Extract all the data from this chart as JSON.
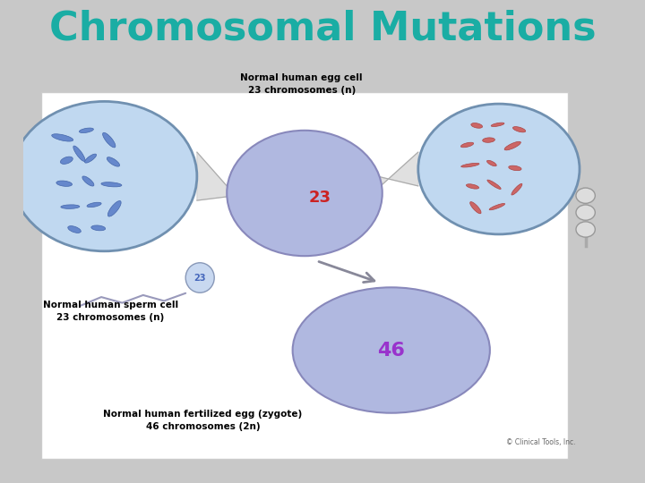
{
  "title": "Chromosomal Mutations",
  "title_color": "#1aada4",
  "title_fontsize": 32,
  "background_color": "#c8c8c8",
  "egg_cell_label": "Normal human egg cell\n23 chromosomes (n)",
  "sperm_label": "Normal human sperm cell\n23 chromosomes (n)",
  "zygote_label": "Normal human fertilized egg (zygote)\n46 chromosomes (2n)",
  "copyright": "© Clinical Tools, Inc.",
  "egg_num": "23",
  "egg_num_color": "#cc2222",
  "sperm_num": "23",
  "sperm_num_color": "#4466bb",
  "zygote_num": "46",
  "zygote_num_color": "#9933cc"
}
